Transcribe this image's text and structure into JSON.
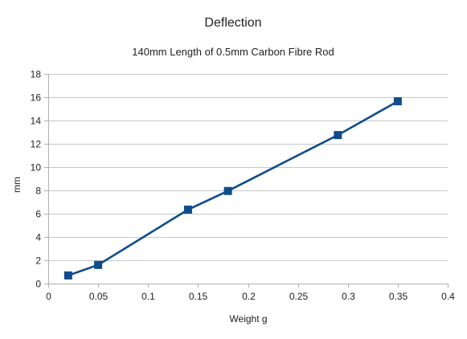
{
  "chart_data": {
    "type": "scatter",
    "title": "Deflection",
    "subtitle": "140mm Length of 0.5mm Carbon Fibre Rod",
    "xlabel": "Weight g",
    "ylabel": "mm",
    "xlim": [
      0,
      0.4
    ],
    "ylim": [
      0,
      18
    ],
    "x_ticks": [
      0,
      0.05,
      0.1,
      0.15,
      0.2,
      0.25,
      0.3,
      0.35,
      0.4
    ],
    "x_tick_labels": [
      "0",
      "0.05",
      "0.1",
      "0.15",
      "0.2",
      "0.25",
      "0.3",
      "0.35",
      "0.4"
    ],
    "y_ticks": [
      0,
      2,
      4,
      6,
      8,
      10,
      12,
      14,
      16,
      18
    ],
    "y_tick_labels": [
      "0",
      "2",
      "4",
      "6",
      "8",
      "10",
      "12",
      "14",
      "16",
      "18"
    ],
    "grid": "horizontal",
    "legend": "none",
    "series": [
      {
        "x": [
          0.02,
          0.05,
          0.14,
          0.18,
          0.29,
          0.35
        ],
        "y": [
          0.7,
          1.6,
          6.35,
          7.95,
          12.75,
          15.65
        ],
        "color": "#0e4d8a",
        "marker": "square",
        "connected": true
      }
    ]
  }
}
